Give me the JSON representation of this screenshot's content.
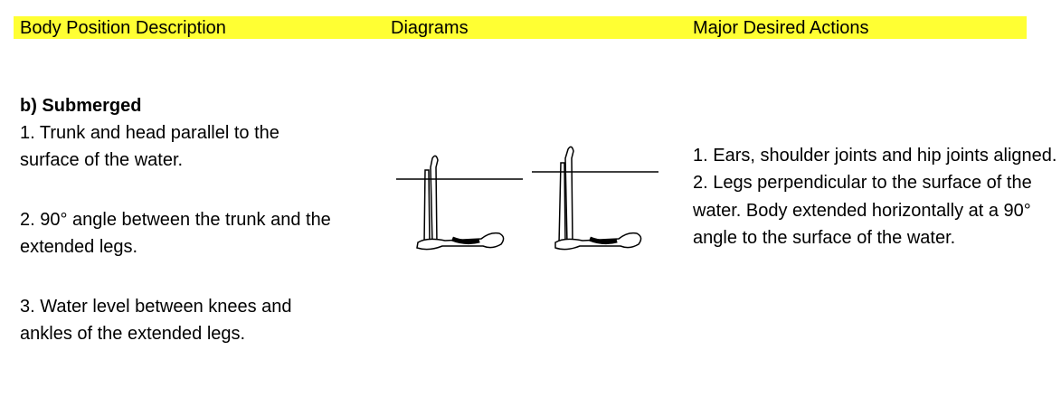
{
  "header": {
    "columns": [
      "Body Position Description",
      "Diagrams",
      "Major Desired Actions"
    ]
  },
  "section": {
    "title": "b)  Submerged",
    "description": [
      "1. Trunk and head parallel to the surface of the water.",
      "2. 90° angle between the trunk and the extended legs.",
      "3. Water level between knees and ankles of the extended legs."
    ],
    "actions": [
      "1. Ears, shoulder joints and hip joints aligned.",
      "2. Legs perpendicular to the surface of the water. Body extended horizontally at a 90° angle to the surface of the water."
    ]
  }
}
